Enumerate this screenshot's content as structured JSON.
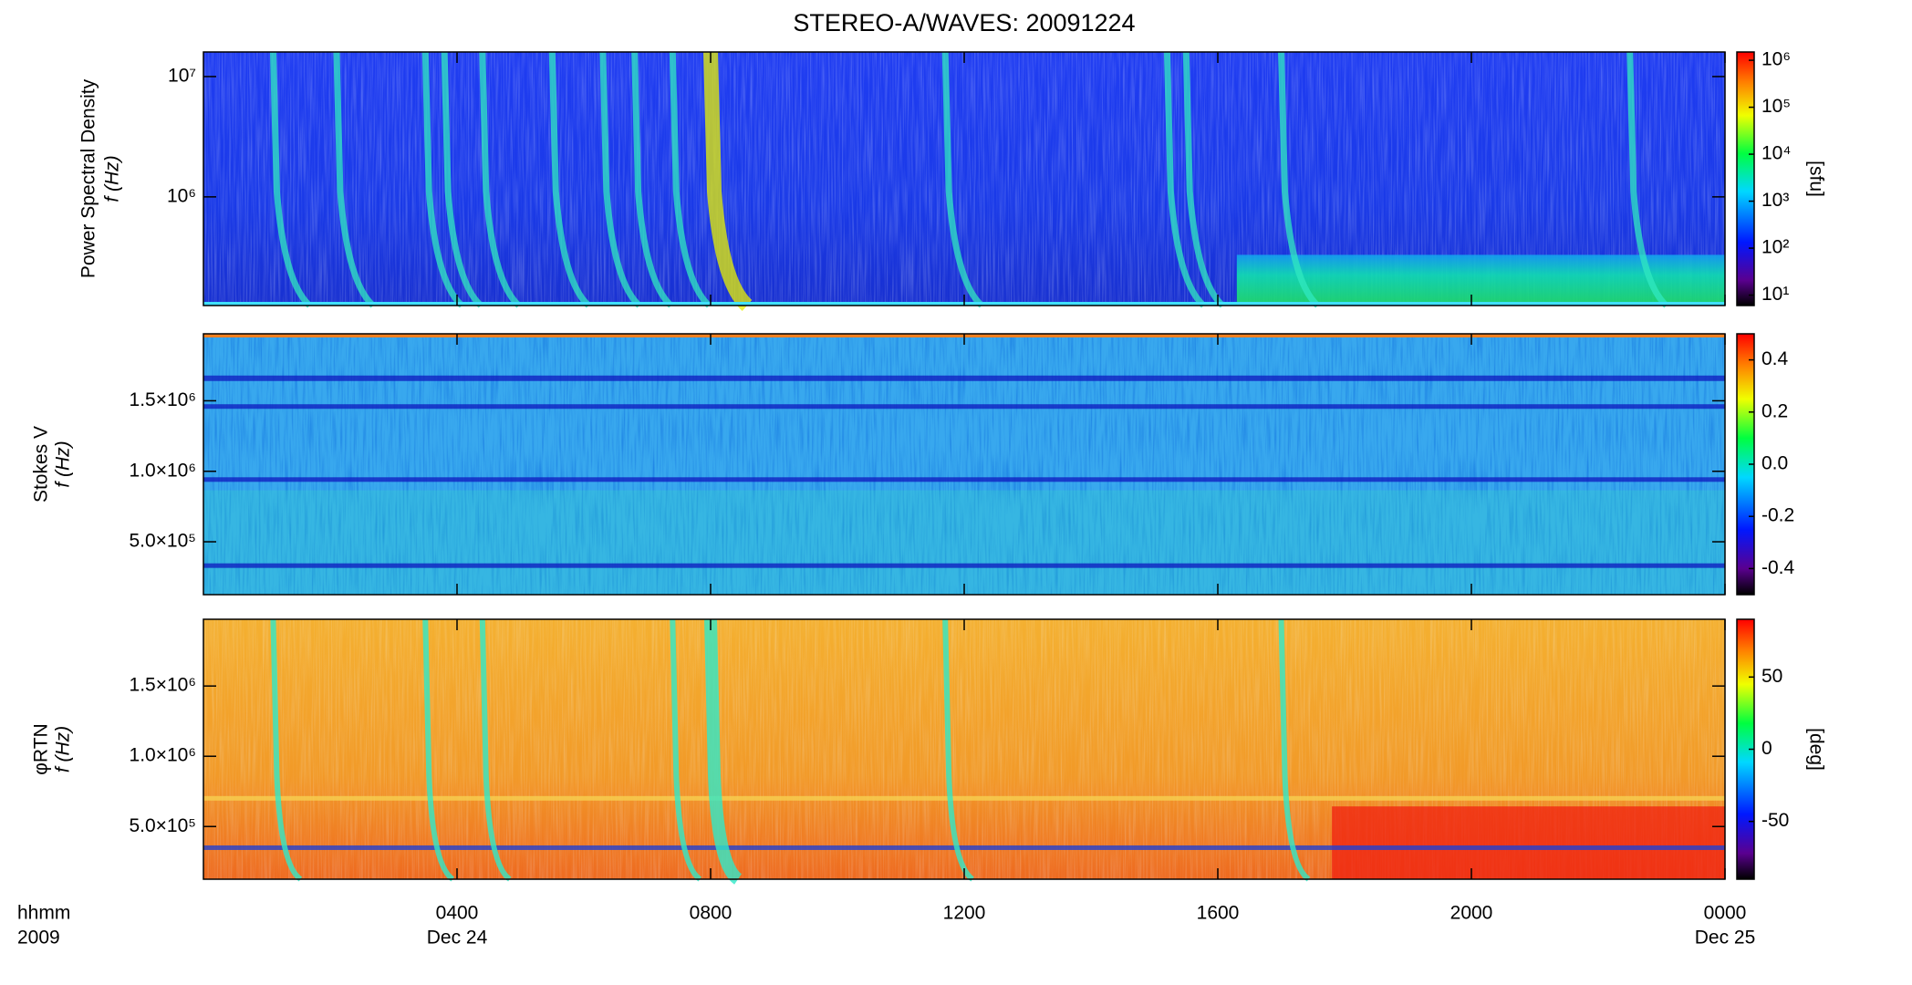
{
  "chart_data": [
    {
      "type": "heatmap",
      "title": "STEREO-A/WAVES: 20091224",
      "ylabel": [
        "Power Spectral Density",
        "f (Hz)"
      ],
      "log_y": true,
      "xlim": [
        0,
        24
      ],
      "ylim": [
        125000,
        16000000
      ],
      "yticks": [
        {
          "value": 1000000,
          "label": "10⁶"
        },
        {
          "value": 10000000,
          "label": "10⁷"
        }
      ],
      "colorbar": {
        "label": "[sfu]",
        "log": true,
        "lim": [
          6,
          1500000
        ],
        "ticks": [
          {
            "value": 10,
            "label": "10¹"
          },
          {
            "value": 100,
            "label": "10²"
          },
          {
            "value": 1000,
            "label": "10³"
          },
          {
            "value": 10000,
            "label": "10⁴"
          },
          {
            "value": 100000,
            "label": "10⁵"
          },
          {
            "value": 1000000,
            "label": "10⁶"
          }
        ]
      }
    },
    {
      "type": "heatmap",
      "ylabel": [
        "Stokes V",
        "f (Hz)"
      ],
      "log_y": false,
      "xlim": [
        0,
        24
      ],
      "ylim": [
        125000,
        1975000
      ],
      "yticks": [
        {
          "value": 500000,
          "label": "5.0×10⁵"
        },
        {
          "value": 1000000,
          "label": "1.0×10⁶"
        },
        {
          "value": 1500000,
          "label": "1.5×10⁶"
        }
      ],
      "colorbar": {
        "log": false,
        "lim": [
          -0.5,
          0.5
        ],
        "ticks": [
          -0.4,
          -0.2,
          {
            "value": 0,
            "label": "0.0"
          },
          0.2,
          0.4
        ]
      }
    },
    {
      "type": "heatmap",
      "ylabel": [
        "φRTN",
        "f (Hz)"
      ],
      "log_y": false,
      "xlim": [
        0,
        24
      ],
      "ylim": [
        125000,
        1975000
      ],
      "yticks": [
        {
          "value": 500000,
          "label": "5.0×10⁵"
        },
        {
          "value": 1000000,
          "label": "1.0×10⁶"
        },
        {
          "value": 1500000,
          "label": "1.5×10⁶"
        }
      ],
      "colorbar": {
        "label": "[deg]",
        "log": false,
        "lim": [
          -90,
          90
        ],
        "ticks": [
          -50,
          0,
          50
        ]
      },
      "xticks": [
        {
          "value": 4,
          "label": "0400"
        },
        {
          "value": 8,
          "label": "0800"
        },
        {
          "value": 12,
          "label": "1200"
        },
        {
          "value": 16,
          "label": "1600"
        },
        {
          "value": 20,
          "label": "2000"
        },
        {
          "value": 24,
          "label": "0000"
        }
      ],
      "xtick_dates": [
        {
          "value": 4,
          "label": "Dec 24"
        },
        {
          "value": 24,
          "label": "Dec 25"
        }
      ],
      "time_label": "hhmm",
      "year_label": "2009"
    }
  ]
}
